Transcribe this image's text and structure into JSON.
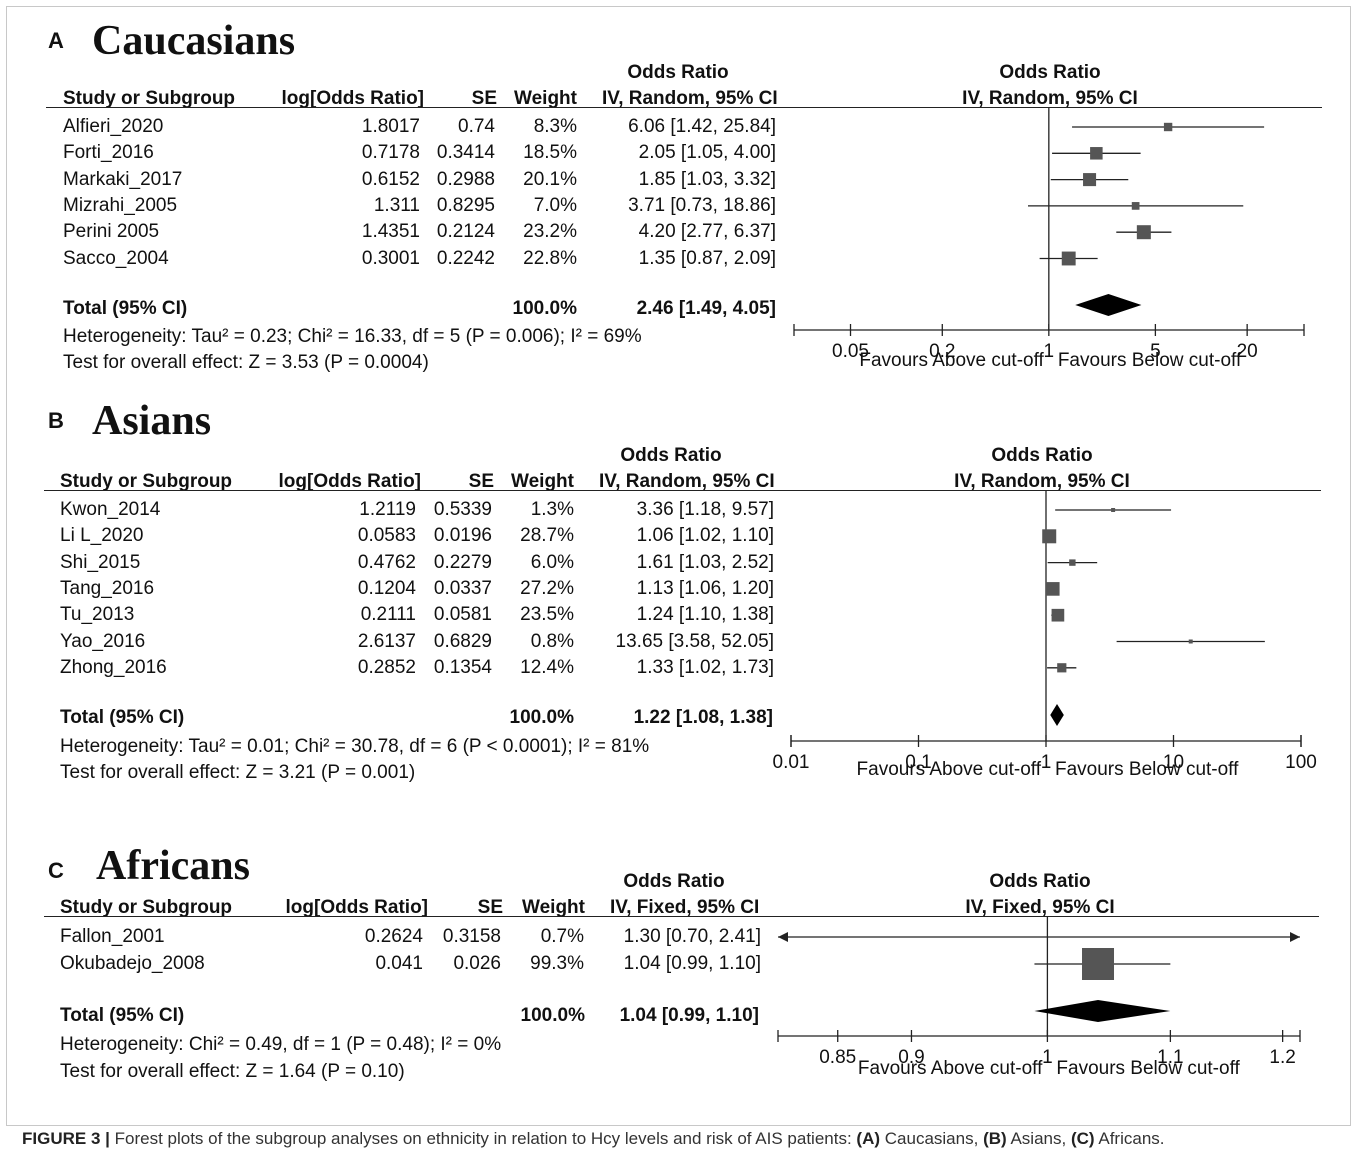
{
  "caption": {
    "figure_label": "FIGURE 3 |",
    "text_before": "Forest plots of the subgroup analyses on ethnicity in relation to Hcy levels and risk of AIS patients:",
    "a_label": "(A)",
    "a_text": "Caucasians,",
    "b_label": "(B)",
    "b_text": "Asians,",
    "c_label": "(C)",
    "c_text": "Africans."
  },
  "chart_data": [
    {
      "type": "forest",
      "panel_label": "A",
      "title": "Caucasians",
      "headers": {
        "study": "Study or Subgroup",
        "logor": "log[Odds Ratio]",
        "se": "SE",
        "weight": "Weight",
        "or_top": "Odds Ratio",
        "or_method": "IV, Random, 95% CI",
        "plot_top": "Odds Ratio",
        "plot_method": "IV, Random, 95% CI"
      },
      "studies": [
        {
          "name": "Alfieri_2020",
          "logor": "1.8017",
          "se": "0.74",
          "weight": "8.3%",
          "ci_text": "6.06 [1.42, 25.84]",
          "or": 6.06,
          "lo": 1.42,
          "hi": 25.84,
          "w": 8.3
        },
        {
          "name": "Forti_2016",
          "logor": "0.7178",
          "se": "0.3414",
          "weight": "18.5%",
          "ci_text": "2.05 [1.05, 4.00]",
          "or": 2.05,
          "lo": 1.05,
          "hi": 4.0,
          "w": 18.5
        },
        {
          "name": "Markaki_2017",
          "logor": "0.6152",
          "se": "0.2988",
          "weight": "20.1%",
          "ci_text": "1.85 [1.03, 3.32]",
          "or": 1.85,
          "lo": 1.03,
          "hi": 3.32,
          "w": 20.1
        },
        {
          "name": "Mizrahi_2005",
          "logor": "1.311",
          "se": "0.8295",
          "weight": "7.0%",
          "ci_text": "3.71 [0.73, 18.86]",
          "or": 3.71,
          "lo": 0.73,
          "hi": 18.86,
          "w": 7.0
        },
        {
          "name": "Perini 2005",
          "logor": "1.4351",
          "se": "0.2124",
          "weight": "23.2%",
          "ci_text": "4.20 [2.77, 6.37]",
          "or": 4.2,
          "lo": 2.77,
          "hi": 6.37,
          "w": 23.2
        },
        {
          "name": "Sacco_2004",
          "logor": "0.3001",
          "se": "0.2242",
          "weight": "22.8%",
          "ci_text": "1.35 [0.87, 2.09]",
          "or": 1.35,
          "lo": 0.87,
          "hi": 2.09,
          "w": 22.8
        }
      ],
      "total": {
        "label": "Total (95% CI)",
        "weight": "100.0%",
        "ci_text": "2.46 [1.49, 4.05]",
        "or": 2.46,
        "lo": 1.49,
        "hi": 4.05
      },
      "heterogeneity": "Heterogeneity: Tau² = 0.23; Chi² = 16.33, df = 5 (P = 0.006); I² = 69%",
      "overall_effect": "Test for overall effect: Z = 3.53 (P = 0.0004)",
      "scale": "log",
      "xlim": [
        0.033,
        30
      ],
      "ticks": [
        0.05,
        0.2,
        1,
        5,
        20
      ],
      "tick_labels": [
        "0.05",
        "0.2",
        "1",
        "5",
        "20"
      ],
      "favours_left": "Favours Above cut-off",
      "favours_right": "Favours Below cut-off",
      "colors": {
        "marker": "#555555",
        "diamond": "#000000",
        "line": "#222222"
      }
    },
    {
      "type": "forest",
      "panel_label": "B",
      "title": "Asians",
      "headers": {
        "study": "Study or Subgroup",
        "logor": "log[Odds Ratio]",
        "se": "SE",
        "weight": "Weight",
        "or_top": "Odds Ratio",
        "or_method": "IV, Random, 95% CI",
        "plot_top": "Odds Ratio",
        "plot_method": "IV, Random, 95% CI"
      },
      "studies": [
        {
          "name": "Kwon_2014",
          "logor": "1.2119",
          "se": "0.5339",
          "weight": "1.3%",
          "ci_text": "3.36 [1.18, 9.57]",
          "or": 3.36,
          "lo": 1.18,
          "hi": 9.57,
          "w": 1.3
        },
        {
          "name": "Li L_2020",
          "logor": "0.0583",
          "se": "0.0196",
          "weight": "28.7%",
          "ci_text": "1.06 [1.02, 1.10]",
          "or": 1.06,
          "lo": 1.02,
          "hi": 1.1,
          "w": 28.7
        },
        {
          "name": "Shi_2015",
          "logor": "0.4762",
          "se": "0.2279",
          "weight": "6.0%",
          "ci_text": "1.61 [1.03, 2.52]",
          "or": 1.61,
          "lo": 1.03,
          "hi": 2.52,
          "w": 6.0
        },
        {
          "name": "Tang_2016",
          "logor": "0.1204",
          "se": "0.0337",
          "weight": "27.2%",
          "ci_text": "1.13 [1.06, 1.20]",
          "or": 1.13,
          "lo": 1.06,
          "hi": 1.2,
          "w": 27.2
        },
        {
          "name": "Tu_2013",
          "logor": "0.2111",
          "se": "0.0581",
          "weight": "23.5%",
          "ci_text": "1.24 [1.10, 1.38]",
          "or": 1.24,
          "lo": 1.1,
          "hi": 1.38,
          "w": 23.5
        },
        {
          "name": "Yao_2016",
          "logor": "2.6137",
          "se": "0.6829",
          "weight": "0.8%",
          "ci_text": "13.65 [3.58, 52.05]",
          "or": 13.65,
          "lo": 3.58,
          "hi": 52.05,
          "w": 0.8
        },
        {
          "name": "Zhong_2016",
          "logor": "0.2852",
          "se": "0.1354",
          "weight": "12.4%",
          "ci_text": "1.33 [1.02, 1.73]",
          "or": 1.33,
          "lo": 1.02,
          "hi": 1.73,
          "w": 12.4
        }
      ],
      "total": {
        "label": "Total (95% CI)",
        "weight": "100.0%",
        "ci_text": "1.22 [1.08, 1.38]",
        "or": 1.22,
        "lo": 1.08,
        "hi": 1.38
      },
      "heterogeneity": "Heterogeneity: Tau² = 0.01; Chi² = 30.78, df = 6 (P < 0.0001); I² = 81%",
      "overall_effect": "Test for overall effect: Z = 3.21 (P = 0.001)",
      "scale": "log",
      "xlim": [
        0.01,
        100
      ],
      "ticks": [
        0.01,
        0.1,
        1,
        10,
        100
      ],
      "tick_labels": [
        "0.01",
        "0.1",
        "1",
        "10",
        "100"
      ],
      "favours_left": "Favours Above cut-off",
      "favours_right": "Favours Below cut-off",
      "colors": {
        "marker": "#555555",
        "diamond": "#000000",
        "line": "#222222"
      }
    },
    {
      "type": "forest",
      "panel_label": "C",
      "title": "Africans",
      "headers": {
        "study": "Study or Subgroup",
        "logor": "log[Odds Ratio]",
        "se": "SE",
        "weight": "Weight",
        "or_top": "Odds Ratio",
        "or_method": "IV, Fixed, 95% CI",
        "plot_top": "Odds Ratio",
        "plot_method": "IV, Fixed, 95% CI"
      },
      "studies": [
        {
          "name": "Fallon_2001",
          "logor": "0.2624",
          "se": "0.3158",
          "weight": "0.7%",
          "ci_text": "1.30 [0.70, 2.41]",
          "or": 1.3,
          "lo": 0.7,
          "hi": 2.41,
          "w": 0.7
        },
        {
          "name": "Okubadejo_2008",
          "logor": "0.041",
          "se": "0.026",
          "weight": "99.3%",
          "ci_text": "1.04 [0.99, 1.10]",
          "or": 1.04,
          "lo": 0.99,
          "hi": 1.1,
          "w": 99.3
        }
      ],
      "total": {
        "label": "Total (95% CI)",
        "weight": "100.0%",
        "ci_text": "1.04 [0.99, 1.10]",
        "or": 1.04,
        "lo": 0.99,
        "hi": 1.1
      },
      "heterogeneity": "Heterogeneity: Chi² = 0.49, df = 1 (P = 0.48); I² = 0%",
      "overall_effect": "Test for overall effect: Z = 1.64 (P = 0.10)",
      "scale": "log",
      "xlim": [
        0.83,
        1.205
      ],
      "ticks": [
        0.85,
        0.9,
        1,
        1.1,
        1.2
      ],
      "tick_labels": [
        "0.85",
        "0.9",
        "1",
        "1.1",
        "1.2"
      ],
      "favours_left": "Favours Above cut-off",
      "favours_right": "Favours Below cut-off",
      "colors": {
        "marker": "#555555",
        "diamond": "#000000",
        "line": "#222222"
      }
    }
  ]
}
